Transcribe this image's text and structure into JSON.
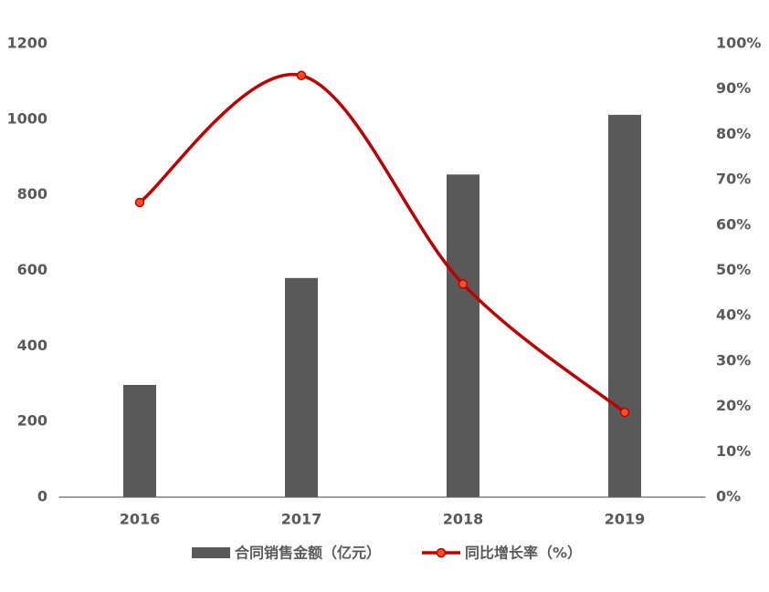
{
  "chart_data": {
    "type": "bar",
    "categories": [
      "2016",
      "2017",
      "2018",
      "2019"
    ],
    "series": [
      {
        "name": "合同销售金额（亿元）",
        "color": "#595959",
        "values": [
          297,
          580,
          854,
          1012
        ]
      },
      {
        "name": "同比增长率（%）",
        "color": "#c00000",
        "type": "line",
        "axis": "y2",
        "smooth": true,
        "marker_color": "#f4511e",
        "values": [
          65,
          93,
          47,
          18.7
        ]
      }
    ],
    "ylim": [
      0,
      1200
    ],
    "yticks": [
      0,
      200,
      400,
      600,
      800,
      1000,
      1200
    ],
    "y2lim": [
      0,
      100
    ],
    "y2ticks": [
      {
        "value": 0,
        "label": "0%"
      },
      {
        "value": 10,
        "label": "10%"
      },
      {
        "value": 20,
        "label": "20%"
      },
      {
        "value": 30,
        "label": "30%"
      },
      {
        "value": 40,
        "label": "40%"
      },
      {
        "value": 50,
        "label": "50%"
      },
      {
        "value": 60,
        "label": "60%"
      },
      {
        "value": 70,
        "label": "70%"
      },
      {
        "value": 80,
        "label": "80%"
      },
      {
        "value": 90,
        "label": "90%"
      },
      {
        "value": 100,
        "label": "100%"
      }
    ],
    "legend": "bottom",
    "grid": false
  }
}
